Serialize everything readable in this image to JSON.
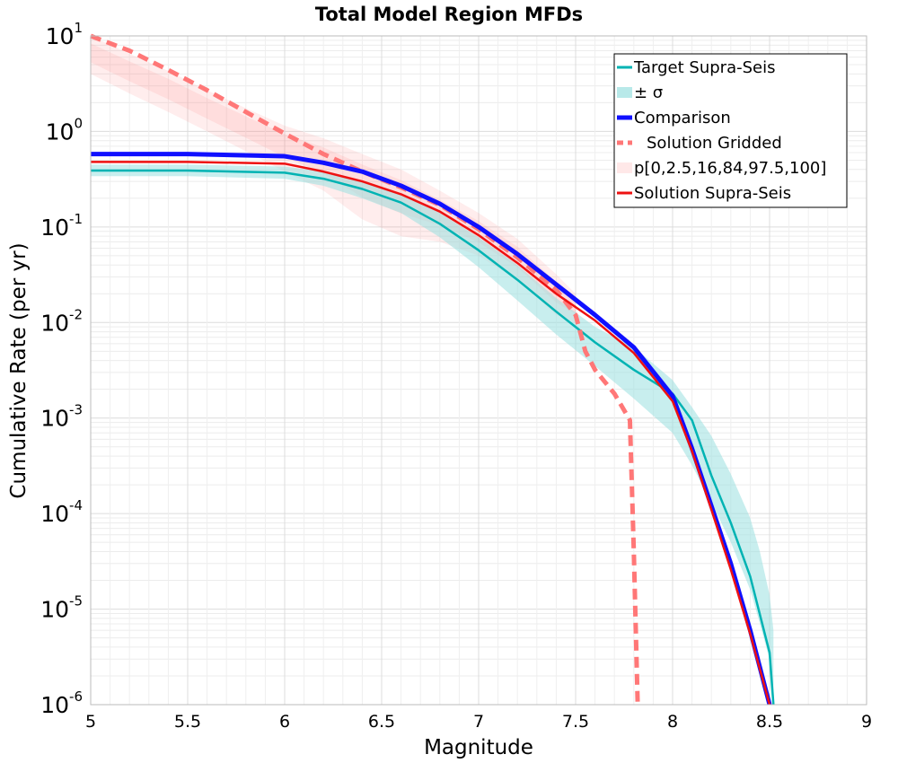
{
  "chart_data": {
    "type": "line",
    "title": "Total Model Region MFDs",
    "xlabel": "Magnitude",
    "ylabel": "Cumulative Rate (per yr)",
    "xlim": [
      5,
      9
    ],
    "ylim": [
      1e-06,
      10
    ],
    "y_scale": "log",
    "grid": true,
    "legend_position": "top-right",
    "x_ticks": [
      "5",
      "5.5",
      "6",
      "6.5",
      "7",
      "7.5",
      "8",
      "8.5",
      "9"
    ],
    "y_ticks": [
      {
        "base": "10",
        "exp": "-6"
      },
      {
        "base": "10",
        "exp": "-5"
      },
      {
        "base": "10",
        "exp": "-4"
      },
      {
        "base": "10",
        "exp": "-3"
      },
      {
        "base": "10",
        "exp": "-2"
      },
      {
        "base": "10",
        "exp": "-1"
      },
      {
        "base": "10",
        "exp": "0"
      },
      {
        "base": "10",
        "exp": "1"
      }
    ],
    "bands": [
      {
        "name": "p[0,2.5,16,84,97.5,100]",
        "color": "#ff8080",
        "x": [
          5.0,
          5.2,
          5.4,
          5.6,
          5.8,
          6.0,
          6.2,
          6.4,
          6.6,
          6.8,
          7.0,
          7.2,
          7.4,
          7.5
        ],
        "lower": [
          4.0,
          2.5,
          1.6,
          1.0,
          0.62,
          0.38,
          0.24,
          0.12,
          0.08,
          0.07,
          0.05,
          0.028,
          0.012,
          0.01
        ],
        "upper": [
          10.0,
          6.5,
          4.3,
          2.7,
          1.75,
          1.15,
          0.85,
          0.58,
          0.4,
          0.24,
          0.14,
          0.075,
          0.032,
          0.02
        ]
      },
      {
        "name": "± σ",
        "color": "#9ae0e0",
        "x": [
          5.0,
          5.5,
          6.0,
          6.2,
          6.4,
          6.6,
          6.8,
          7.0,
          7.2,
          7.4,
          7.6,
          7.8,
          8.0,
          8.1,
          8.2,
          8.3,
          8.4,
          8.45,
          8.5,
          8.52
        ],
        "lower": [
          0.34,
          0.34,
          0.32,
          0.27,
          0.2,
          0.14,
          0.078,
          0.038,
          0.017,
          0.0075,
          0.0035,
          0.0016,
          0.0007,
          0.00032,
          0.00013,
          5e-05,
          1.6e-05,
          7e-06,
          3e-06,
          1e-06
        ],
        "upper": [
          0.45,
          0.45,
          0.43,
          0.38,
          0.3,
          0.22,
          0.14,
          0.078,
          0.04,
          0.018,
          0.009,
          0.0055,
          0.0025,
          0.0013,
          0.00065,
          0.00026,
          9e-05,
          4e-05,
          1.4e-05,
          6e-06
        ]
      }
    ],
    "series": [
      {
        "name": "Target Supra-Seis",
        "color": "#00b3b3",
        "width": 2.5,
        "dash": "",
        "x": [
          5.0,
          5.5,
          6.0,
          6.2,
          6.4,
          6.6,
          6.8,
          7.0,
          7.2,
          7.4,
          7.6,
          7.8,
          8.0,
          8.1,
          8.2,
          8.3,
          8.4,
          8.5,
          8.52
        ],
        "y": [
          0.39,
          0.39,
          0.37,
          0.32,
          0.25,
          0.18,
          0.108,
          0.057,
          0.028,
          0.013,
          0.0062,
          0.0032,
          0.0018,
          0.00095,
          0.00025,
          8e-05,
          2.2e-05,
          3.5e-06,
          1e-06
        ]
      },
      {
        "name": "Solution Gridded",
        "color": "#ff7777",
        "width": 5,
        "dash": "12,7",
        "x": [
          5.0,
          5.2,
          5.4,
          5.6,
          5.8,
          6.0,
          6.2,
          6.4,
          6.6,
          6.8,
          7.0,
          7.2,
          7.4,
          7.5,
          7.55,
          7.6,
          7.7,
          7.78,
          7.8,
          7.82
        ],
        "y": [
          10.0,
          7.0,
          4.4,
          2.7,
          1.6,
          0.95,
          0.58,
          0.38,
          0.26,
          0.17,
          0.095,
          0.048,
          0.022,
          0.012,
          0.005,
          0.0032,
          0.0018,
          0.00095,
          4e-05,
          1e-06
        ]
      },
      {
        "name": "Comparison",
        "color": "#1010ff",
        "width": 5,
        "dash": "",
        "x": [
          5.0,
          5.5,
          6.0,
          6.2,
          6.4,
          6.6,
          6.8,
          7.0,
          7.2,
          7.4,
          7.6,
          7.8,
          8.0,
          8.1,
          8.2,
          8.3,
          8.4,
          8.5
        ],
        "y": [
          0.58,
          0.58,
          0.55,
          0.47,
          0.38,
          0.27,
          0.175,
          0.1,
          0.052,
          0.025,
          0.012,
          0.0055,
          0.0017,
          0.00048,
          0.00012,
          3e-05,
          6e-06,
          1e-06
        ]
      },
      {
        "name": "Solution Supra-Seis",
        "color": "#ee1111",
        "width": 2.5,
        "dash": "",
        "x": [
          5.0,
          5.5,
          6.0,
          6.2,
          6.4,
          6.6,
          6.8,
          7.0,
          7.2,
          7.4,
          7.6,
          7.8,
          8.0,
          8.1,
          8.2,
          8.3,
          8.4,
          8.5
        ],
        "y": [
          0.48,
          0.48,
          0.46,
          0.38,
          0.3,
          0.22,
          0.145,
          0.082,
          0.042,
          0.02,
          0.0105,
          0.0048,
          0.0015,
          0.00045,
          0.00011,
          2.6e-05,
          5.5e-06,
          1e-06
        ]
      }
    ],
    "legend": [
      {
        "label": "Target Supra-Seis",
        "kind": "line",
        "color": "#00b3b3"
      },
      {
        "label": "± σ",
        "kind": "band",
        "color": "#9ae0e0"
      },
      {
        "label": "Comparison",
        "kind": "thick-line",
        "color": "#1010ff"
      },
      {
        "label": "Solution Gridded",
        "kind": "dashed",
        "color": "#ff7777"
      },
      {
        "label": "p[0,2.5,16,84,97.5,100]",
        "kind": "band-light",
        "color": "#ffd8d8"
      },
      {
        "label": "Solution Supra-Seis",
        "kind": "line",
        "color": "#ee1111"
      }
    ]
  }
}
